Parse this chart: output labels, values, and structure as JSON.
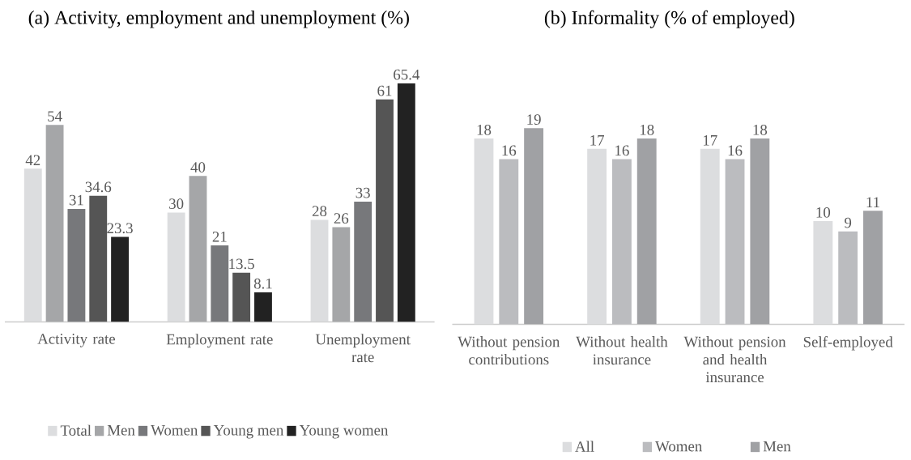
{
  "chart_data": [
    {
      "type": "bar",
      "title": "(a) Activity, employment and unemployment (%)",
      "categories": [
        "Activity rate",
        "Employment rate",
        "Unemployment rate"
      ],
      "series": [
        {
          "name": "Total",
          "color": "#dcdddf",
          "values": [
            42,
            30,
            28
          ]
        },
        {
          "name": "Men",
          "color": "#a5a6a8",
          "values": [
            54,
            40,
            26
          ]
        },
        {
          "name": "Women",
          "color": "#77787b",
          "values": [
            31,
            21,
            33
          ]
        },
        {
          "name": "Young men",
          "color": "#555555",
          "values": [
            34.6,
            13.5,
            61
          ]
        },
        {
          "name": "Young women",
          "color": "#222222",
          "values": [
            23.3,
            8.1,
            65.4
          ]
        }
      ],
      "data_labels": true,
      "legend": "bottom"
    },
    {
      "type": "bar",
      "title": "(b) Informality (% of employed)",
      "categories": [
        "Without pension contributions",
        "Without health insurance",
        "Without pension and health insurance",
        "Self-employed"
      ],
      "series": [
        {
          "name": "All",
          "color": "#dcdddf",
          "values": [
            18,
            17,
            17,
            10
          ]
        },
        {
          "name": "Women",
          "color": "#bbbcbf",
          "values": [
            16,
            16,
            16,
            9
          ]
        },
        {
          "name": "Men",
          "color": "#a0a1a4",
          "values": [
            19,
            18,
            18,
            11
          ]
        }
      ],
      "data_labels": true,
      "legend": "bottom"
    }
  ]
}
